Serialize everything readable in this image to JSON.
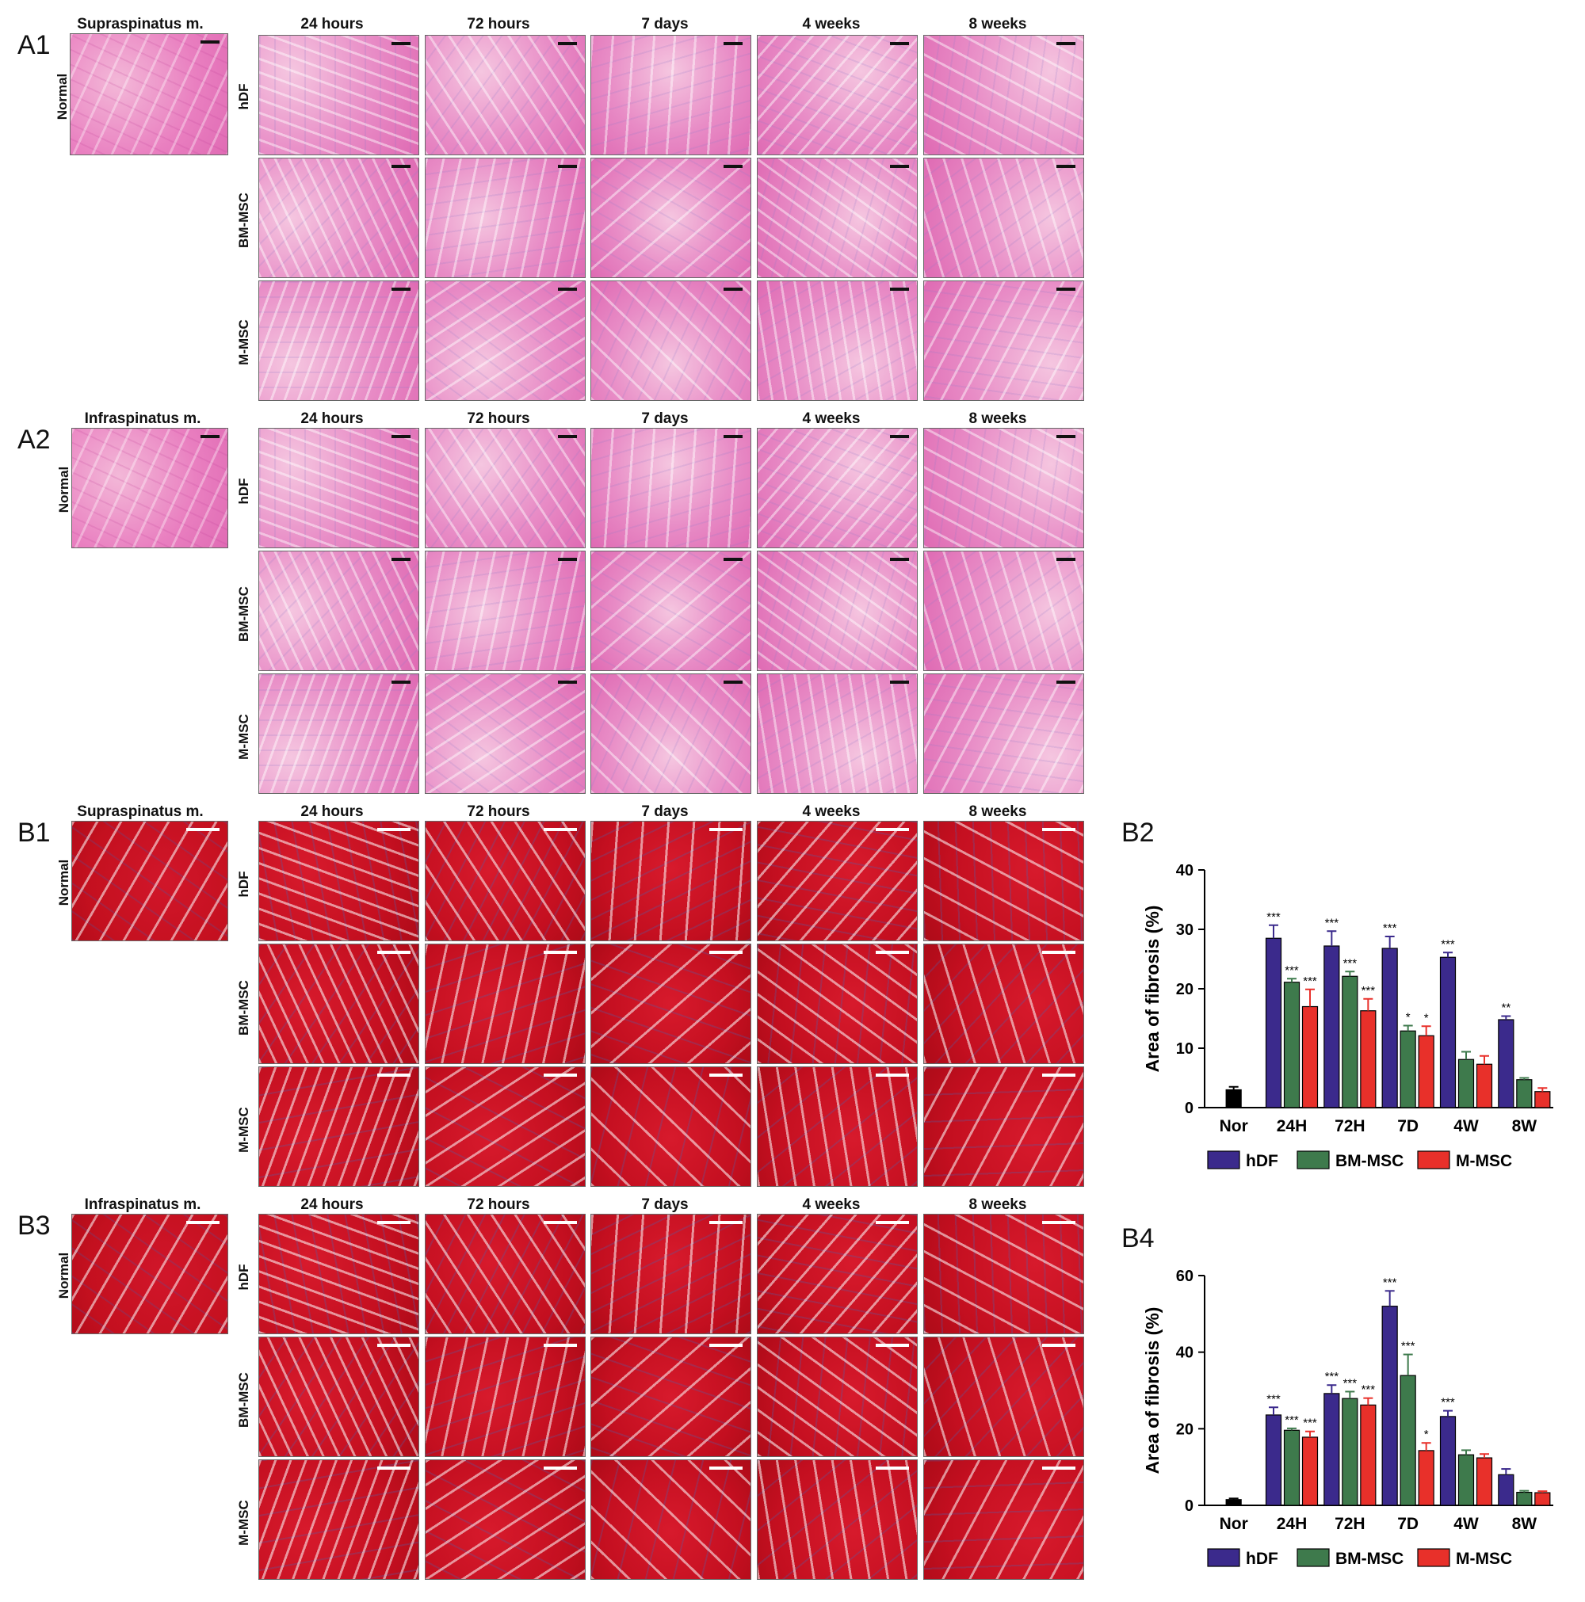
{
  "sections": {
    "A1": {
      "label": "A1",
      "tissue": "Supraspinatus m.",
      "stain": "he"
    },
    "A2": {
      "label": "A2",
      "tissue": "Infraspinatus m.",
      "stain": "he"
    },
    "B1": {
      "label": "B1",
      "tissue": "Supraspinatus m.",
      "stain": "tri"
    },
    "B3": {
      "label": "B3",
      "tissue": "Infraspinatus m.",
      "stain": "tri"
    }
  },
  "time_labels": [
    "24 hours",
    "72 hours",
    "7 days",
    "4 weeks",
    "8 weeks"
  ],
  "row_labels": {
    "normal": "Normal",
    "groups": [
      "hDF",
      "BM-MSC",
      "M-MSC"
    ]
  },
  "chart_labels": {
    "B2": "B2",
    "B4": "B4"
  },
  "colors": {
    "hDF": "#3b2a8c",
    "BM-MSC": "#3e7a4c",
    "M-MSC": "#e8302a",
    "Nor": "#000000"
  },
  "chart_data": [
    {
      "type": "bar",
      "id": "B2",
      "title": "",
      "xlabel": "",
      "ylabel": "Area of fibrosis (%)",
      "ylim": [
        0,
        40
      ],
      "yticks": [
        0,
        10,
        20,
        30,
        40
      ],
      "categories": [
        "Nor",
        "24H",
        "72H",
        "7D",
        "4W",
        "8W"
      ],
      "series": [
        {
          "name": "Nor",
          "values": [
            3.0,
            null,
            null,
            null,
            null,
            null
          ],
          "errors": [
            0.5,
            null,
            null,
            null,
            null,
            null
          ]
        },
        {
          "name": "hDF",
          "values": [
            null,
            28.5,
            27.2,
            26.8,
            25.3,
            14.8
          ],
          "errors": [
            null,
            2.2,
            2.5,
            2.0,
            0.8,
            0.6
          ],
          "sig": [
            "",
            "***",
            "***",
            "***",
            "***",
            "**"
          ]
        },
        {
          "name": "BM-MSC",
          "values": [
            null,
            21.1,
            22.1,
            12.9,
            8.1,
            4.7
          ],
          "errors": [
            null,
            0.6,
            0.8,
            0.9,
            1.3,
            0.3
          ],
          "sig": [
            "",
            "***",
            "***",
            "*",
            "",
            ""
          ]
        },
        {
          "name": "M-MSC",
          "values": [
            null,
            17.0,
            16.3,
            12.1,
            7.3,
            2.7
          ],
          "errors": [
            null,
            2.9,
            2.0,
            1.6,
            1.4,
            0.6
          ],
          "sig": [
            "",
            "***",
            "***",
            "*",
            "",
            ""
          ]
        }
      ],
      "legend": [
        "hDF",
        "BM-MSC",
        "M-MSC"
      ],
      "legend_position": "bottom"
    },
    {
      "type": "bar",
      "id": "B4",
      "title": "",
      "xlabel": "",
      "ylabel": "Area of fibrosis (%)",
      "ylim": [
        0,
        60
      ],
      "yticks": [
        0,
        20,
        40,
        60
      ],
      "categories": [
        "Nor",
        "24H",
        "72H",
        "7D",
        "4W",
        "8W"
      ],
      "series": [
        {
          "name": "Nor",
          "values": [
            1.5,
            null,
            null,
            null,
            null,
            null
          ],
          "errors": [
            0.3,
            null,
            null,
            null,
            null,
            null
          ]
        },
        {
          "name": "hDF",
          "values": [
            null,
            23.6,
            29.2,
            52.0,
            23.2,
            8.0
          ],
          "errors": [
            null,
            2.0,
            2.2,
            4.0,
            1.5,
            1.5
          ],
          "sig": [
            "",
            "***",
            "***",
            "***",
            "***",
            ""
          ]
        },
        {
          "name": "BM-MSC",
          "values": [
            null,
            19.6,
            27.9,
            33.9,
            13.2,
            3.4
          ],
          "errors": [
            null,
            0.5,
            1.8,
            5.5,
            1.2,
            0.4
          ],
          "sig": [
            "",
            "***",
            "***",
            "***",
            "",
            ""
          ]
        },
        {
          "name": "M-MSC",
          "values": [
            null,
            17.8,
            26.2,
            14.3,
            12.4,
            3.3
          ],
          "errors": [
            null,
            1.5,
            1.8,
            2.0,
            1.0,
            0.4
          ],
          "sig": [
            "",
            "***",
            "***",
            "*",
            "",
            ""
          ]
        }
      ],
      "legend": [
        "hDF",
        "BM-MSC",
        "M-MSC"
      ],
      "legend_position": "bottom"
    }
  ]
}
